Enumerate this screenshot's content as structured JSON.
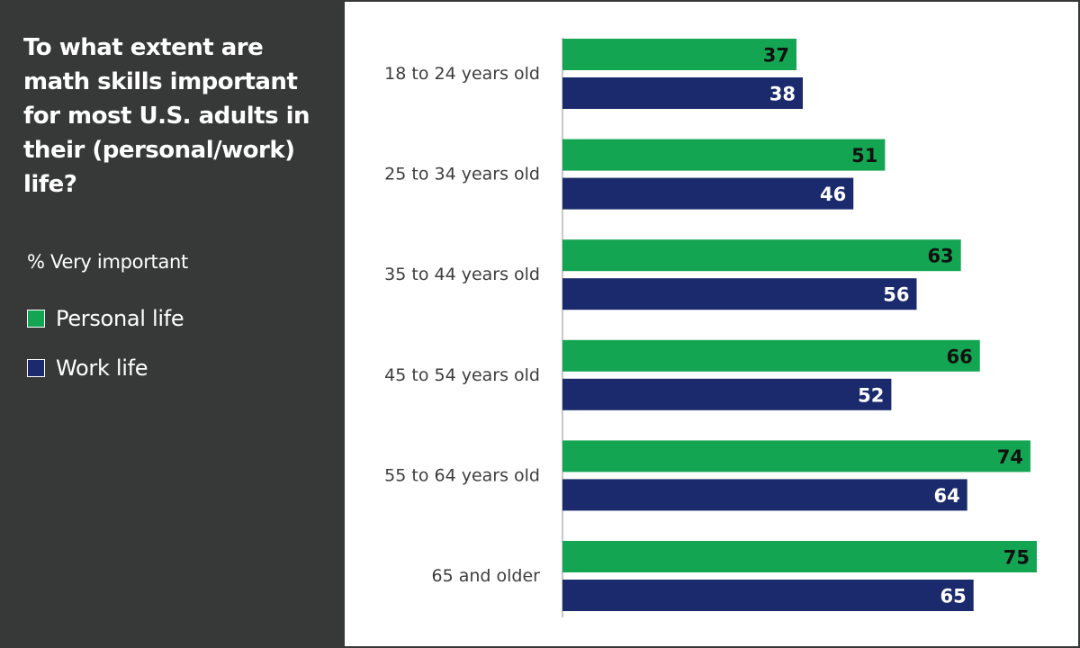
{
  "title": "To what extent are math skills important for most U.S. adults in their (personal/work) life?",
  "subtitle": "% Very important",
  "legend": [
    {
      "label": "Personal life",
      "color": "#14a552"
    },
    {
      "label": "Work life",
      "color": "#1a2a6c"
    }
  ],
  "chart_data": {
    "type": "bar",
    "orientation": "horizontal",
    "categories": [
      "18 to 24 years old",
      "25 to 34 years old",
      "35 to 44 years old",
      "45 to 54 years old",
      "55 to 64 years old",
      "65 and older"
    ],
    "series": [
      {
        "name": "Personal life",
        "color": "#14a552",
        "values": [
          37,
          51,
          63,
          66,
          74,
          75
        ]
      },
      {
        "name": "Work life",
        "color": "#1a2a6c",
        "values": [
          38,
          46,
          56,
          52,
          64,
          65
        ]
      }
    ],
    "xlim": [
      0,
      75
    ],
    "grid": false,
    "legend_position": "left",
    "data_labels": true
  }
}
